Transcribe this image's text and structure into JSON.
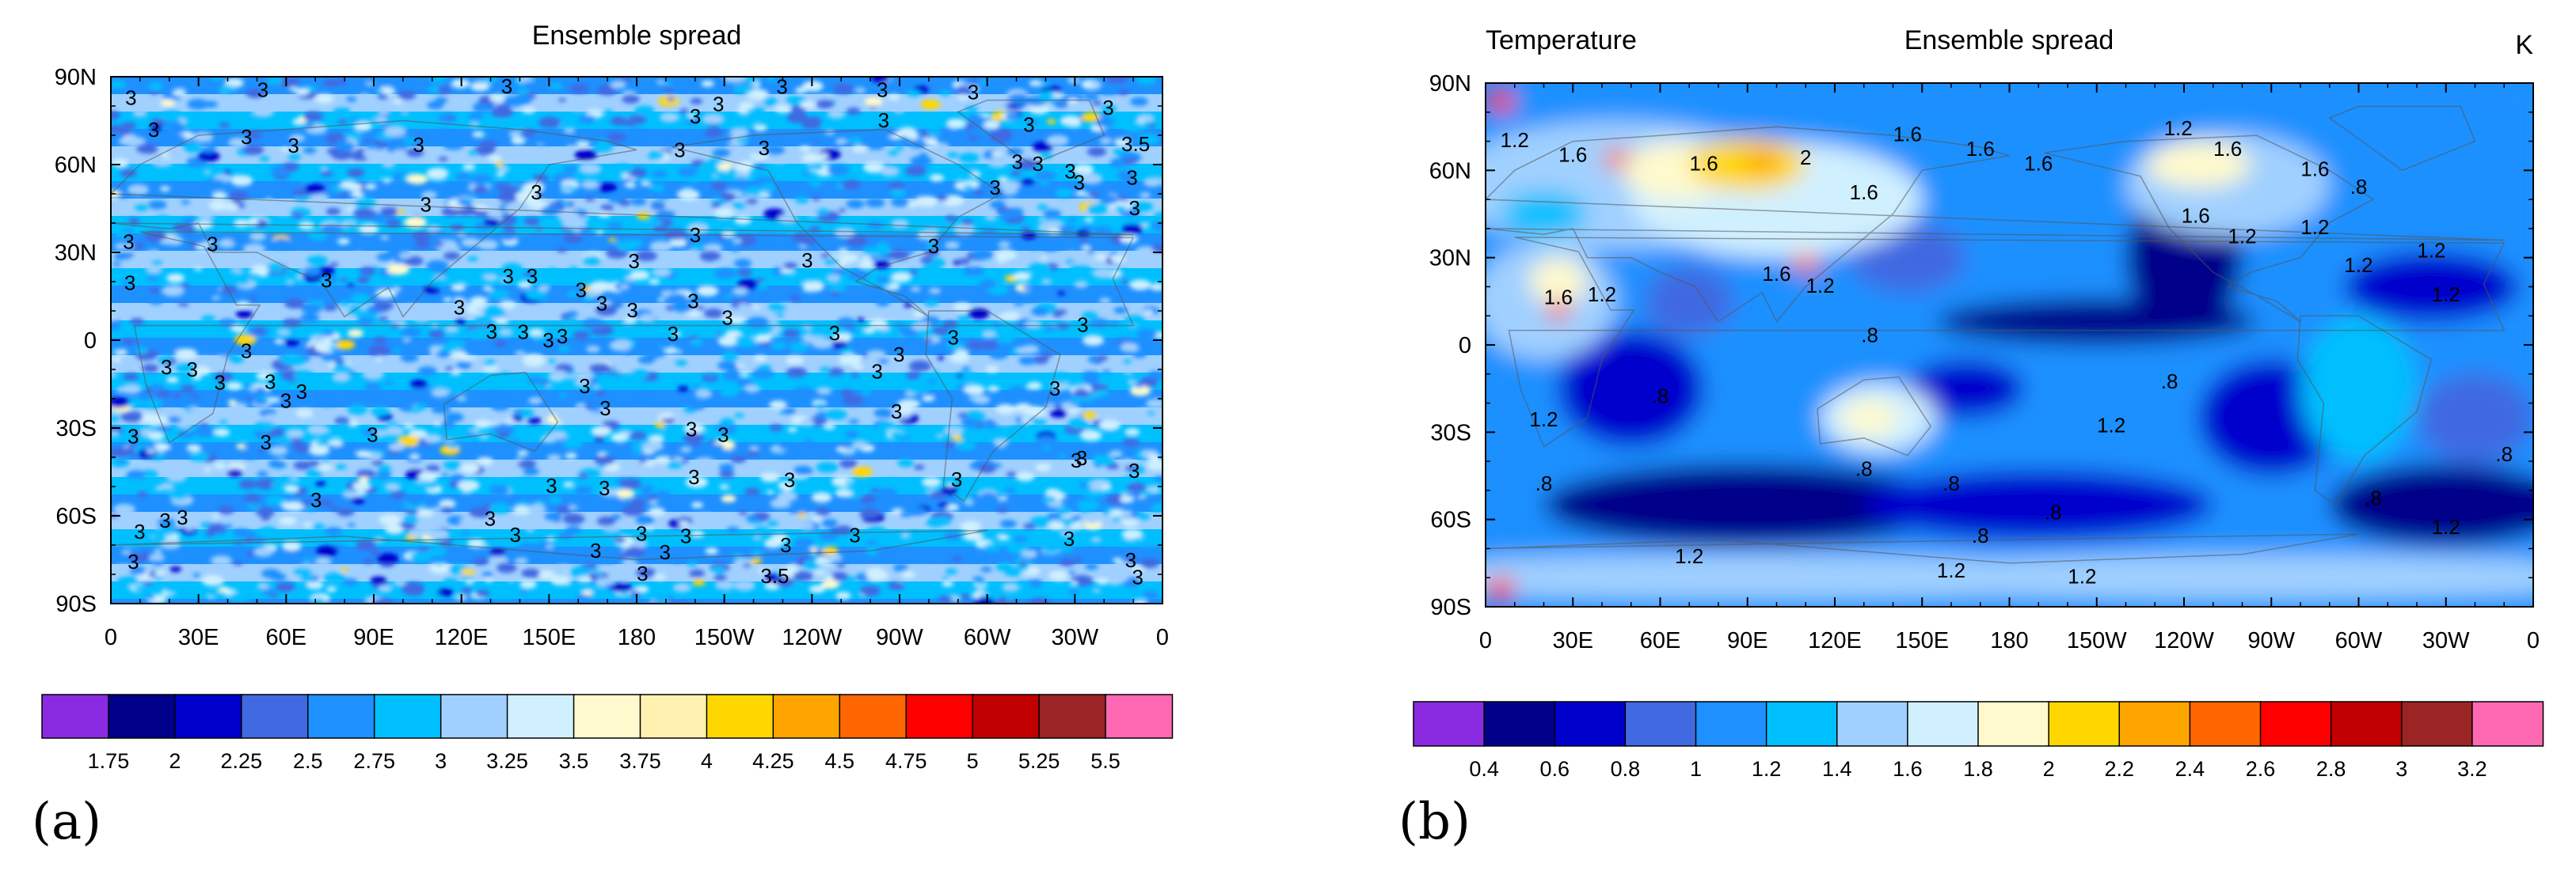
{
  "chart_data": [
    {
      "type": "heatmap",
      "panel_label": "(a)",
      "title": "Ensemble spread",
      "left_title": "",
      "right_title": "",
      "xlabel": "",
      "ylabel": "",
      "x_ticks": [
        "0",
        "30E",
        "60E",
        "90E",
        "120E",
        "150E",
        "180",
        "150W",
        "120W",
        "90W",
        "60W",
        "30W",
        "0"
      ],
      "y_ticks": [
        "90N",
        "60N",
        "30N",
        "0",
        "30S",
        "60S",
        "90S"
      ],
      "xlim": [
        0,
        360
      ],
      "ylim": [
        -90,
        90
      ],
      "colorbar": {
        "labels": [
          "1.75",
          "2",
          "2.25",
          "2.5",
          "2.75",
          "3",
          "3.25",
          "3.5",
          "3.75",
          "4",
          "4.25",
          "4.5",
          "4.75",
          "5",
          "5.25",
          "5.5"
        ],
        "colors": [
          "#8a2be2",
          "#00008b",
          "#0000cd",
          "#4169e1",
          "#1e90ff",
          "#00bfff",
          "#a0d0ff",
          "#d0f0ff",
          "#fffacd",
          "#fff2b0",
          "#ffd700",
          "#ffa500",
          "#ff6600",
          "#ff0000",
          "#c00000",
          "#9b2424",
          "#ff69b4"
        ]
      },
      "contour_label_values": [
        "3",
        "3.5"
      ],
      "pattern": "zonal bands alternating 2.75-3.5 with sparse 4-4.25 streaks"
    },
    {
      "type": "heatmap",
      "panel_label": "(b)",
      "title": "Ensemble spread",
      "left_title": "Temperature",
      "right_title": "K",
      "xlabel": "",
      "ylabel": "",
      "x_ticks": [
        "0",
        "30E",
        "60E",
        "90E",
        "120E",
        "150E",
        "180",
        "150W",
        "120W",
        "90W",
        "60W",
        "30W",
        "0"
      ],
      "y_ticks": [
        "90N",
        "60N",
        "30N",
        "0",
        "30S",
        "60S",
        "90S"
      ],
      "xlim": [
        0,
        360
      ],
      "ylim": [
        -90,
        90
      ],
      "colorbar": {
        "labels": [
          "0.4",
          "0.6",
          "0.8",
          "1",
          "1.2",
          "1.4",
          "1.6",
          "1.8",
          "2",
          "2.2",
          "2.4",
          "2.6",
          "2.8",
          "3",
          "3.2"
        ],
        "colors": [
          "#8a2be2",
          "#00008b",
          "#0000cd",
          "#4169e1",
          "#1e90ff",
          "#00bfff",
          "#a0d0ff",
          "#d0f0ff",
          "#fffacd",
          "#ffd700",
          "#ffa500",
          "#ff6600",
          "#ff0000",
          "#c00000",
          "#9b2424",
          "#ff69b4"
        ]
      },
      "contour_label_values": [
        "1.2",
        "1.6",
        "2",
        ".8"
      ],
      "pattern": "high spread over northern land masses (1.6-2.6), low spread over oceans (0.6-1.2)"
    }
  ]
}
